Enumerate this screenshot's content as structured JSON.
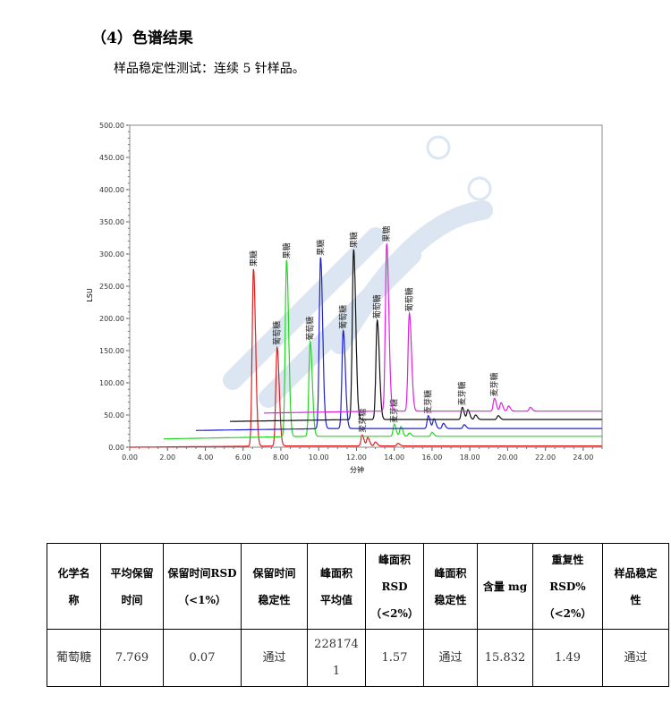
{
  "heading": "（4）色谱结果",
  "intro": "样品稳定性测试：连续 5 针样品。",
  "chart_data": {
    "type": "line",
    "xlabel": "分钟",
    "ylabel": "LSU",
    "xlim": [
      0,
      25
    ],
    "ylim": [
      0,
      500
    ],
    "xticks": [
      "0.00",
      "2.00",
      "4.00",
      "6.00",
      "8.00",
      "10.00",
      "12.00",
      "14.00",
      "16.00",
      "18.00",
      "20.00",
      "22.00",
      "24.00"
    ],
    "yticks": [
      "0.00",
      "50.00",
      "100.00",
      "150.00",
      "200.00",
      "250.00",
      "300.00",
      "350.00",
      "400.00",
      "450.00",
      "500.00"
    ],
    "series": [
      {
        "color": "#e02020",
        "start": 0,
        "baseline": 0,
        "end_baseline": 2,
        "peaks": [
          [
            6.55,
            275,
            "果糖"
          ],
          [
            7.8,
            153,
            "葡萄糖"
          ],
          [
            12.3,
            17,
            "麦芽糖"
          ],
          [
            12.6,
            13,
            ""
          ],
          [
            13.0,
            6,
            ""
          ],
          [
            14.2,
            4,
            ""
          ]
        ]
      },
      {
        "color": "#22d822",
        "start": 1.8,
        "baseline": 13,
        "end_baseline": 17,
        "peaks": [
          [
            8.3,
            287,
            "果糖"
          ],
          [
            9.55,
            160,
            "葡萄糖"
          ],
          [
            14.0,
            32,
            "麦芽糖"
          ],
          [
            14.35,
            28,
            ""
          ],
          [
            14.8,
            18,
            ""
          ],
          [
            16.0,
            19,
            ""
          ]
        ]
      },
      {
        "color": "#2020d0",
        "start": 3.5,
        "baseline": 26,
        "end_baseline": 29,
        "peaks": [
          [
            10.1,
            292,
            "果糖"
          ],
          [
            11.3,
            178,
            "葡萄糖"
          ],
          [
            15.8,
            46,
            "麦芽糖"
          ],
          [
            16.1,
            41,
            ""
          ],
          [
            16.6,
            34,
            ""
          ],
          [
            17.7,
            32,
            ""
          ]
        ]
      },
      {
        "color": "#111111",
        "start": 5.3,
        "baseline": 40,
        "end_baseline": 43,
        "peaks": [
          [
            11.85,
            304,
            "果糖"
          ],
          [
            13.1,
            194,
            "葡萄糖"
          ],
          [
            17.6,
            59,
            "麦芽糖"
          ],
          [
            17.9,
            55,
            ""
          ],
          [
            18.3,
            47,
            ""
          ],
          [
            19.5,
            46,
            ""
          ]
        ]
      },
      {
        "color": "#e020e0",
        "start": 7.1,
        "baseline": 53,
        "end_baseline": 56,
        "peaks": [
          [
            13.6,
            313,
            "果糖"
          ],
          [
            14.8,
            205,
            "葡萄糖"
          ],
          [
            19.3,
            73,
            "麦芽糖"
          ],
          [
            19.65,
            66,
            ""
          ],
          [
            20.05,
            61,
            ""
          ],
          [
            21.2,
            59,
            ""
          ]
        ]
      }
    ]
  },
  "table": {
    "headers": [
      [
        "化学名",
        "称"
      ],
      [
        "平均保留",
        "时间"
      ],
      [
        "保留时间RSD",
        "（<1%）"
      ],
      [
        "保留时间",
        "稳定性"
      ],
      [
        "峰面积",
        "平均值"
      ],
      [
        "峰面积",
        "RSD",
        "（<2%）"
      ],
      [
        "峰面积",
        "稳定性"
      ],
      [
        "含量 mg"
      ],
      [
        "重复性",
        "RSD%",
        "（<2%）"
      ],
      [
        "样品稳定",
        "性"
      ]
    ],
    "row": [
      "葡萄糖",
      "7.769",
      "0.07",
      "通过",
      "228174\n1",
      "1.57",
      "通过",
      "15.832",
      "1.49",
      "通过"
    ]
  }
}
